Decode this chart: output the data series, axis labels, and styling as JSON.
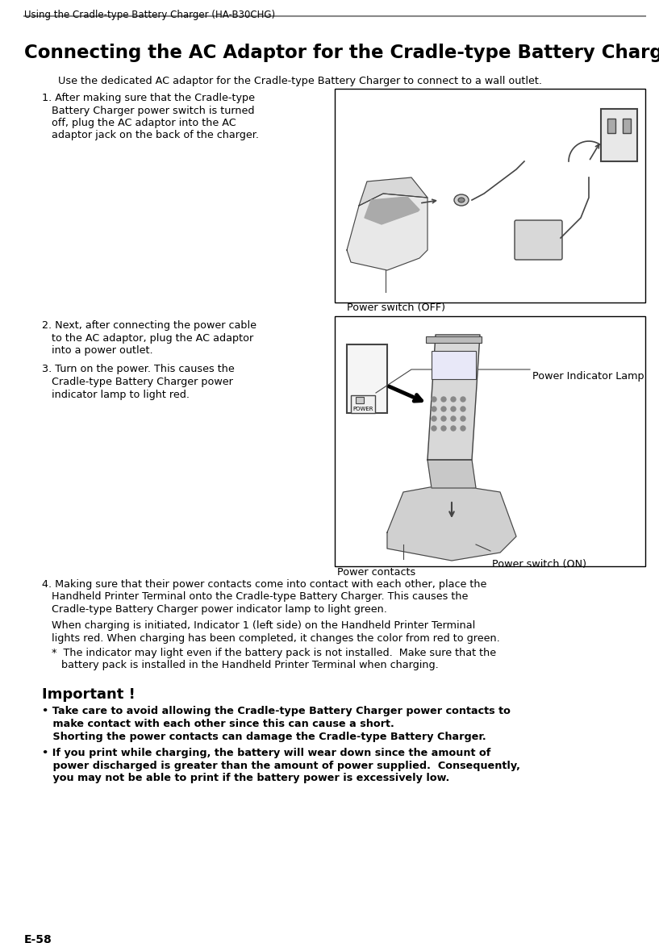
{
  "page_title": "Using the Cradle-type Battery Charger (HA-B30CHG)",
  "section_title": "Connecting the AC Adaptor for the Cradle-type Battery Charger",
  "intro_text": "Use the dedicated AC adaptor for the Cradle-type Battery Charger to connect to a wall outlet.",
  "step1_lines": [
    "1. After making sure that the Cradle-type",
    "   Battery Charger power switch is turned",
    "   off, plug the AC adaptor into the AC",
    "   adaptor jack on the back of the charger."
  ],
  "step2_lines": [
    "2. Next, after connecting the power cable",
    "   to the AC adaptor, plug the AC adaptor",
    "   into a power outlet."
  ],
  "step3_lines": [
    "3. Turn on the power. This causes the",
    "   Cradle-type Battery Charger power",
    "   indicator lamp to light red."
  ],
  "step4_lines": [
    "4. Making sure that their power contacts come into contact with each other, place the",
    "   Handheld Printer Terminal onto the Cradle-type Battery Charger. This causes the",
    "   Cradle-type Battery Charger power indicator lamp to light green."
  ],
  "step4_sub1_lines": [
    "   When charging is initiated, Indicator 1 (left side) on the Handheld Printer Terminal",
    "   lights red. When charging has been completed, it changes the color from red to green."
  ],
  "step4_sub2_lines": [
    "   *  The indicator may light even if the battery pack is not installed.  Make sure that the",
    "      battery pack is installed in the Handheld Printer Terminal when charging."
  ],
  "important_title": "Important !",
  "bullet1_lines": [
    "• Take care to avoid allowing the Cradle-type Battery Charger power contacts to",
    "   make contact with each other since this can cause a short.",
    "   Shorting the power contacts can damage the Cradle-type Battery Charger."
  ],
  "bullet2_lines": [
    "• If you print while charging, the battery will wear down since the amount of",
    "   power discharged is greater than the amount of power supplied.  Consequently,",
    "   you may not be able to print if the battery power is excessively low."
  ],
  "page_number": "E-58",
  "diag1_label": "Power switch (OFF)",
  "diag2_power_indicator": "Power Indicator Lamp",
  "diag2_power_contacts": "Power contacts",
  "diag2_power_switch_on": "Power switch (ON)",
  "diag2_power_text": "POWER",
  "bg_color": "#ffffff",
  "text_color": "#000000",
  "header_line_color": "#888888",
  "box_color": "#000000",
  "gray_dark": "#444444",
  "gray_mid": "#888888",
  "gray_light": "#cccccc",
  "gray_lighter": "#e8e8e8"
}
